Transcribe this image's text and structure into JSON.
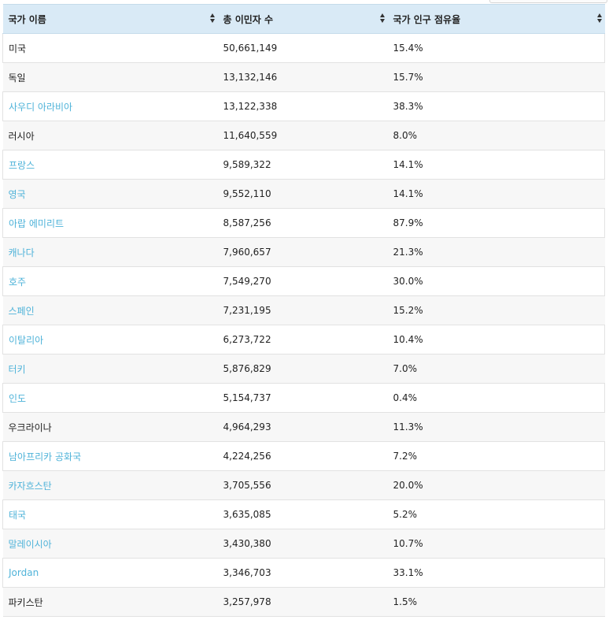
{
  "table": {
    "headers": [
      {
        "label": "국가 이름"
      },
      {
        "label": "총 이민자 수"
      },
      {
        "label": "국가 인구 점유율"
      }
    ],
    "rows": [
      {
        "country": "미국",
        "link": false,
        "total": "50,661,149",
        "share": "15.4%"
      },
      {
        "country": "독일",
        "link": false,
        "total": "13,132,146",
        "share": "15.7%"
      },
      {
        "country": "사우디 아라비아",
        "link": true,
        "total": "13,122,338",
        "share": "38.3%"
      },
      {
        "country": "러시아",
        "link": false,
        "total": "11,640,559",
        "share": "8.0%"
      },
      {
        "country": "프랑스",
        "link": true,
        "total": "9,589,322",
        "share": "14.1%"
      },
      {
        "country": "영국",
        "link": true,
        "total": "9,552,110",
        "share": "14.1%"
      },
      {
        "country": "아랍 에미리트",
        "link": true,
        "total": "8,587,256",
        "share": "87.9%"
      },
      {
        "country": "캐나다",
        "link": true,
        "total": "7,960,657",
        "share": "21.3%"
      },
      {
        "country": "호주",
        "link": true,
        "total": "7,549,270",
        "share": "30.0%"
      },
      {
        "country": "스페인",
        "link": true,
        "total": "7,231,195",
        "share": "15.2%"
      },
      {
        "country": "이탈리아",
        "link": true,
        "total": "6,273,722",
        "share": "10.4%"
      },
      {
        "country": "터키",
        "link": true,
        "total": "5,876,829",
        "share": "7.0%"
      },
      {
        "country": "인도",
        "link": true,
        "total": "5,154,737",
        "share": "0.4%"
      },
      {
        "country": "우크라이나",
        "link": false,
        "total": "4,964,293",
        "share": "11.3%"
      },
      {
        "country": "남아프리카 공화국",
        "link": true,
        "total": "4,224,256",
        "share": "7.2%"
      },
      {
        "country": "카자흐스탄",
        "link": true,
        "total": "3,705,556",
        "share": "20.0%"
      },
      {
        "country": "태국",
        "link": true,
        "total": "3,635,085",
        "share": "5.2%"
      },
      {
        "country": "말레이시아",
        "link": true,
        "total": "3,430,380",
        "share": "10.7%"
      },
      {
        "country": "Jordan",
        "link": true,
        "total": "3,346,703",
        "share": "33.1%"
      },
      {
        "country": "파키스탄",
        "link": false,
        "total": "3,257,978",
        "share": "1.5%"
      }
    ]
  },
  "colors": {
    "header_bg": "#d9eaf6",
    "link": "#4fb3d9",
    "text": "#222222",
    "row_alt": "#f7f7f7",
    "border": "#e2e2e2"
  },
  "icons": {
    "sort": "sort-updown-icon"
  }
}
